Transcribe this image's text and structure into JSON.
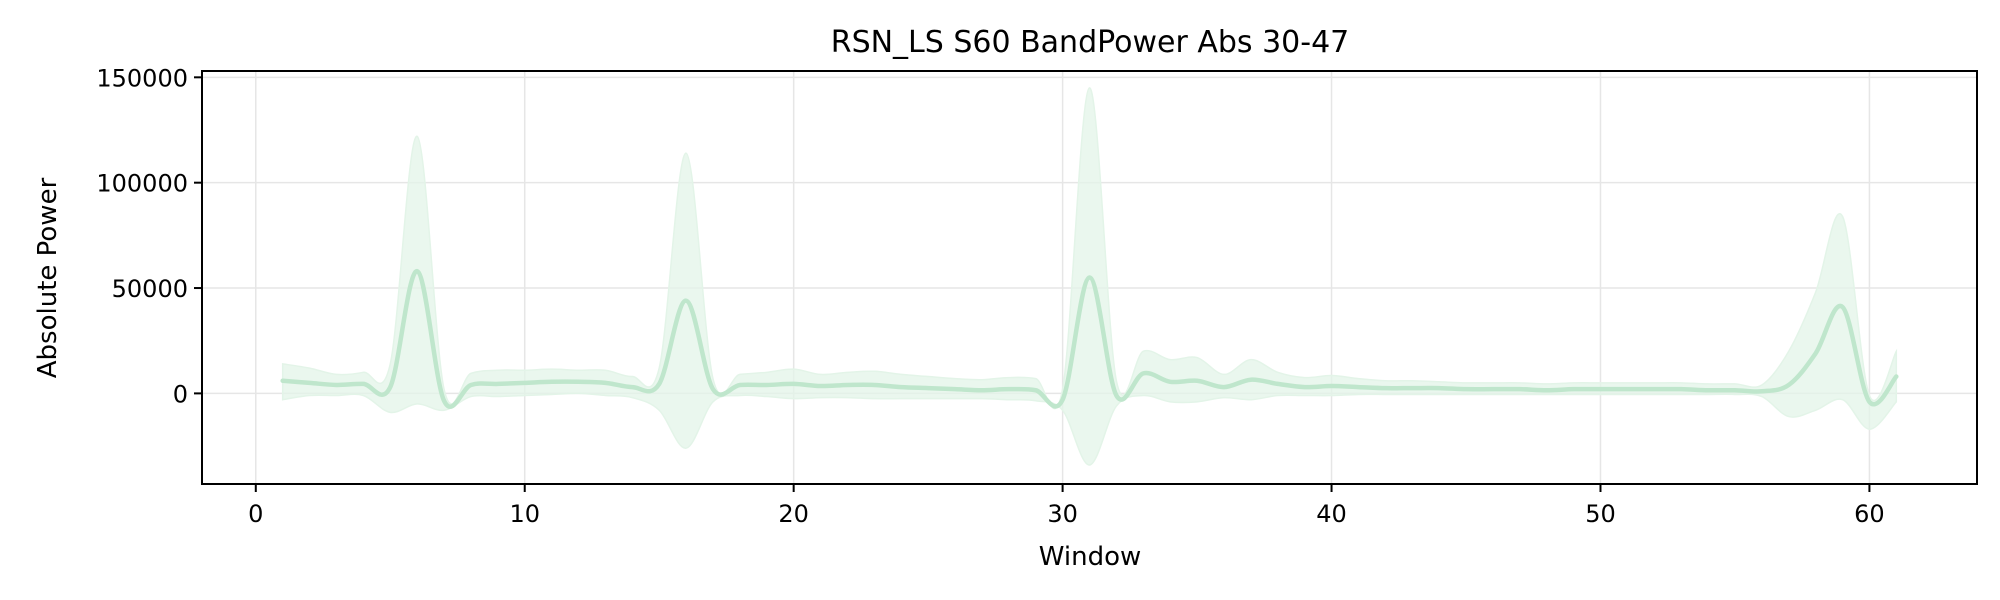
{
  "chart_data": {
    "type": "line",
    "title": "RSN_LS S60 BandPower Abs 30-47",
    "xlabel": "Window",
    "ylabel": "Absolute Power",
    "xlim": [
      -2,
      64
    ],
    "ylim": [
      -43000,
      153000
    ],
    "xticks": [
      0,
      10,
      20,
      30,
      40,
      50,
      60
    ],
    "yticks": [
      0,
      50000,
      100000,
      150000
    ],
    "grid": true,
    "line_color": "#bfe6cc",
    "band_color": "#e3f4e8",
    "series": [
      {
        "name": "",
        "x": [
          1,
          2,
          3,
          4,
          5,
          6,
          7,
          8,
          9,
          10,
          11,
          12,
          13,
          14,
          15,
          16,
          17,
          18,
          19,
          20,
          21,
          22,
          23,
          24,
          25,
          26,
          27,
          28,
          29,
          30,
          31,
          32,
          33,
          34,
          35,
          36,
          37,
          38,
          39,
          40,
          41,
          42,
          43,
          44,
          45,
          46,
          47,
          48,
          49,
          50,
          51,
          52,
          53,
          54,
          55,
          56,
          57,
          58,
          59,
          60,
          61
        ],
        "y": [
          6000,
          5000,
          4000,
          4500,
          3000,
          58000,
          -3500,
          4000,
          4500,
          5000,
          5500,
          5500,
          5000,
          3000,
          4500,
          44000,
          2000,
          4000,
          4000,
          4500,
          3500,
          4000,
          4000,
          3000,
          2500,
          2000,
          1500,
          2000,
          1500,
          -3000,
          55000,
          -1000,
          9500,
          5500,
          6000,
          3000,
          6500,
          4500,
          3000,
          3500,
          3000,
          2500,
          2500,
          2500,
          2000,
          2000,
          2000,
          1500,
          2000,
          2000,
          2000,
          2000,
          2000,
          1500,
          1500,
          1000,
          4000,
          19000,
          41000,
          -4000,
          8000
        ],
        "upper": [
          14000,
          12000,
          9000,
          10000,
          14000,
          122000,
          2000,
          9500,
          11000,
          11000,
          11500,
          11000,
          11000,
          8000,
          12000,
          114000,
          7000,
          9000,
          10000,
          11500,
          9000,
          10000,
          10500,
          9000,
          8000,
          7000,
          6500,
          7500,
          7000,
          2000,
          145000,
          6000,
          20000,
          16000,
          17000,
          9000,
          16000,
          10000,
          7500,
          8500,
          7000,
          6000,
          6000,
          5500,
          5000,
          5000,
          5000,
          4500,
          5000,
          5000,
          5000,
          5000,
          5000,
          4500,
          4500,
          4000,
          20000,
          48000,
          84000,
          -1000,
          20000
        ],
        "lower": [
          -3000,
          -1000,
          -1000,
          -1000,
          -9000,
          -5000,
          -8000,
          -1500,
          -1500,
          -1000,
          -500,
          0,
          -1000,
          -2000,
          -8000,
          -26000,
          -4000,
          -1000,
          -1500,
          -2500,
          -2000,
          -2000,
          -2500,
          -2500,
          -2500,
          -2500,
          -2500,
          -3000,
          -3500,
          -8000,
          -34000,
          -6000,
          -1000,
          -4000,
          -4000,
          -2000,
          -3000,
          -1000,
          -1000,
          -1000,
          -500,
          -500,
          -500,
          -500,
          -500,
          -500,
          -500,
          -500,
          -500,
          -500,
          -500,
          -500,
          -500,
          -500,
          -500,
          -1500,
          -11000,
          -8000,
          -3000,
          -17000,
          -4000
        ]
      }
    ]
  }
}
